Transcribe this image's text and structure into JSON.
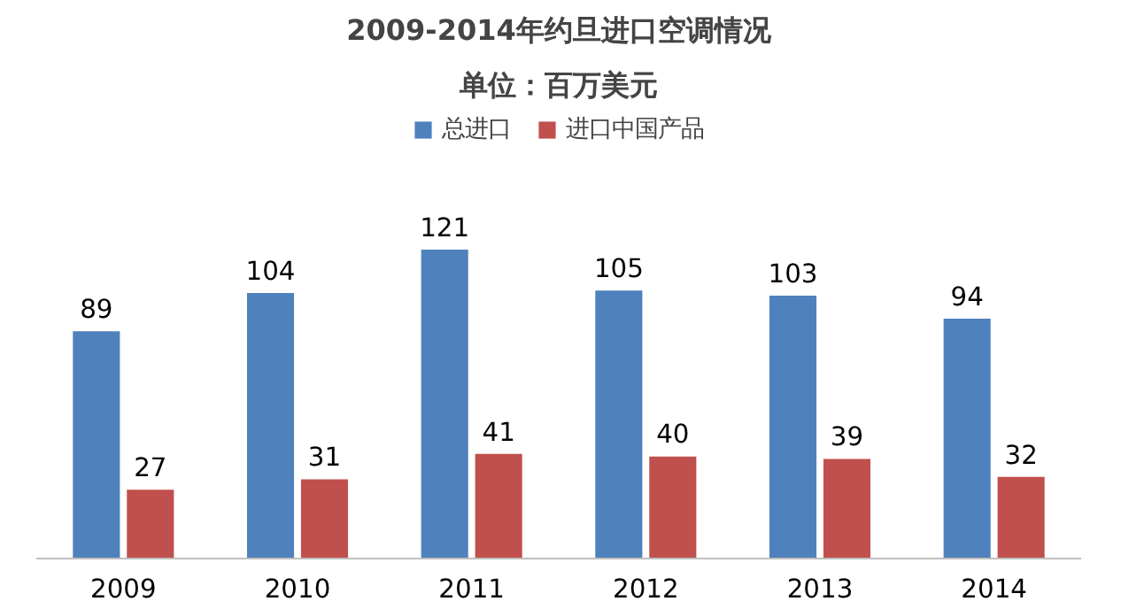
{
  "chart_data": {
    "type": "bar",
    "title": "2009-2014年约旦进口空调情况",
    "subtitle": "单位：百万美元",
    "categories": [
      "2009",
      "2010",
      "2011",
      "2012",
      "2013",
      "2014"
    ],
    "series": [
      {
        "name": "总进口",
        "color": "#4f81bd",
        "values": [
          89,
          104,
          121,
          105,
          103,
          94
        ]
      },
      {
        "name": "进口中国产品",
        "color": "#c0504d",
        "values": [
          27,
          31,
          41,
          40,
          39,
          32
        ]
      }
    ],
    "data_labels": true,
    "legend": "top",
    "grid": false
  }
}
